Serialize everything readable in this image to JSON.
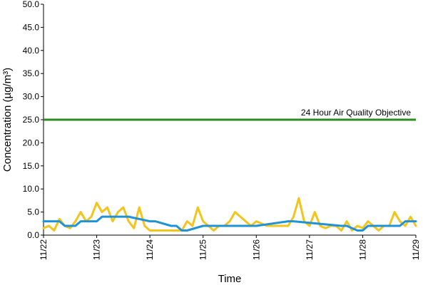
{
  "chart_data": {
    "type": "line",
    "xlabel": "Time",
    "ylabel": "Concentration (µg/m³)",
    "ylim": [
      0,
      50
    ],
    "yticks": [
      "0.0",
      "5.0",
      "10.0",
      "15.0",
      "20.0",
      "25.0",
      "30.0",
      "35.0",
      "40.0",
      "45.0",
      "50.0"
    ],
    "xlim": [
      "11/22",
      "11/29"
    ],
    "xticks": [
      "11/22",
      "11/23",
      "11/24",
      "11/25",
      "11/26",
      "11/27",
      "11/28",
      "11/29"
    ],
    "grid": false,
    "reference_lines": [
      {
        "label": "24 Hour Air Quality Objective",
        "value": 25,
        "color": "#2e8b22"
      }
    ],
    "series": [
      {
        "style": "hourly",
        "color": "#f2c41c",
        "x": [
          0,
          0.1,
          0.2,
          0.3,
          0.4,
          0.5,
          0.6,
          0.7,
          0.8,
          0.9,
          1,
          1.1,
          1.2,
          1.3,
          1.4,
          1.5,
          1.6,
          1.7,
          1.8,
          1.9,
          2,
          2.2,
          2.4,
          2.6,
          2.7,
          2.8,
          2.9,
          3,
          3.1,
          3.2,
          3.3,
          3.4,
          3.5,
          3.6,
          3.8,
          3.9,
          4,
          4.2,
          4.4,
          4.6,
          4.7,
          4.8,
          4.9,
          5,
          5.1,
          5.2,
          5.3,
          5.4,
          5.5,
          5.6,
          5.7,
          5.8,
          5.9,
          6,
          6.1,
          6.2,
          6.3,
          6.4,
          6.5,
          6.6,
          6.7,
          6.8,
          6.9,
          7
        ],
        "y": [
          1.5,
          2,
          1,
          3.5,
          2,
          1.5,
          3,
          5,
          3,
          4,
          7,
          5,
          6,
          3,
          5,
          6,
          3,
          1.5,
          6,
          2,
          1,
          1,
          1,
          1,
          3,
          2,
          6,
          3,
          2,
          1,
          2,
          2,
          3,
          5,
          3,
          2,
          3,
          2,
          2,
          2,
          4,
          8,
          3,
          2,
          5,
          2,
          1.5,
          2,
          2,
          1,
          3,
          1,
          2,
          1.5,
          3,
          2,
          1,
          2,
          2,
          5,
          3,
          2,
          4,
          2
        ]
      },
      {
        "style": "24-hour",
        "color": "#1f93d6",
        "x": [
          0,
          0.3,
          0.4,
          0.6,
          0.7,
          1,
          1.1,
          1.5,
          1.6,
          2,
          2.1,
          2.4,
          2.5,
          2.6,
          2.7,
          3,
          3.1,
          3.9,
          4,
          4.6,
          4.7,
          5.6,
          5.7,
          5.9,
          6,
          6.1,
          6.2,
          6.4,
          6.5,
          6.7,
          6.8,
          7
        ],
        "y": [
          3,
          3,
          2,
          2,
          3,
          3,
          4,
          4,
          4,
          3,
          3,
          2,
          2,
          1,
          1,
          2,
          2,
          2,
          2,
          3,
          3,
          2,
          2,
          1,
          1,
          2,
          2,
          2,
          2,
          2,
          3,
          3
        ]
      }
    ]
  }
}
